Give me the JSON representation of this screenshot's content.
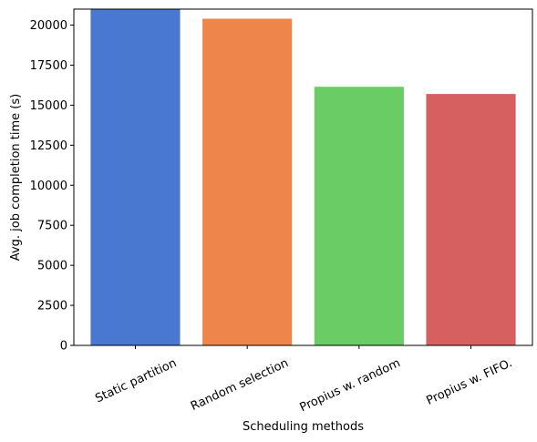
{
  "chart_data": {
    "type": "bar",
    "title": "",
    "xlabel": "Scheduling methods",
    "ylabel": "Avg. job completion time (s)",
    "categories": [
      "Static partition",
      "Random selection",
      "Propius w. random",
      "Propius w. FIFO."
    ],
    "values": [
      21500,
      20400,
      16150,
      15700
    ],
    "colors": [
      "#4878d0",
      "#ee854a",
      "#6acc64",
      "#d65f5f"
    ],
    "ylim": [
      0,
      21000
    ],
    "yticks": [
      0,
      2500,
      5000,
      7500,
      10000,
      12500,
      15000,
      17500,
      20000
    ],
    "ytick_labels": [
      "0",
      "2500",
      "5000",
      "7500",
      "10000",
      "12500",
      "15000",
      "17500",
      "20000"
    ],
    "grid": false,
    "xtick_rotation": 25
  }
}
